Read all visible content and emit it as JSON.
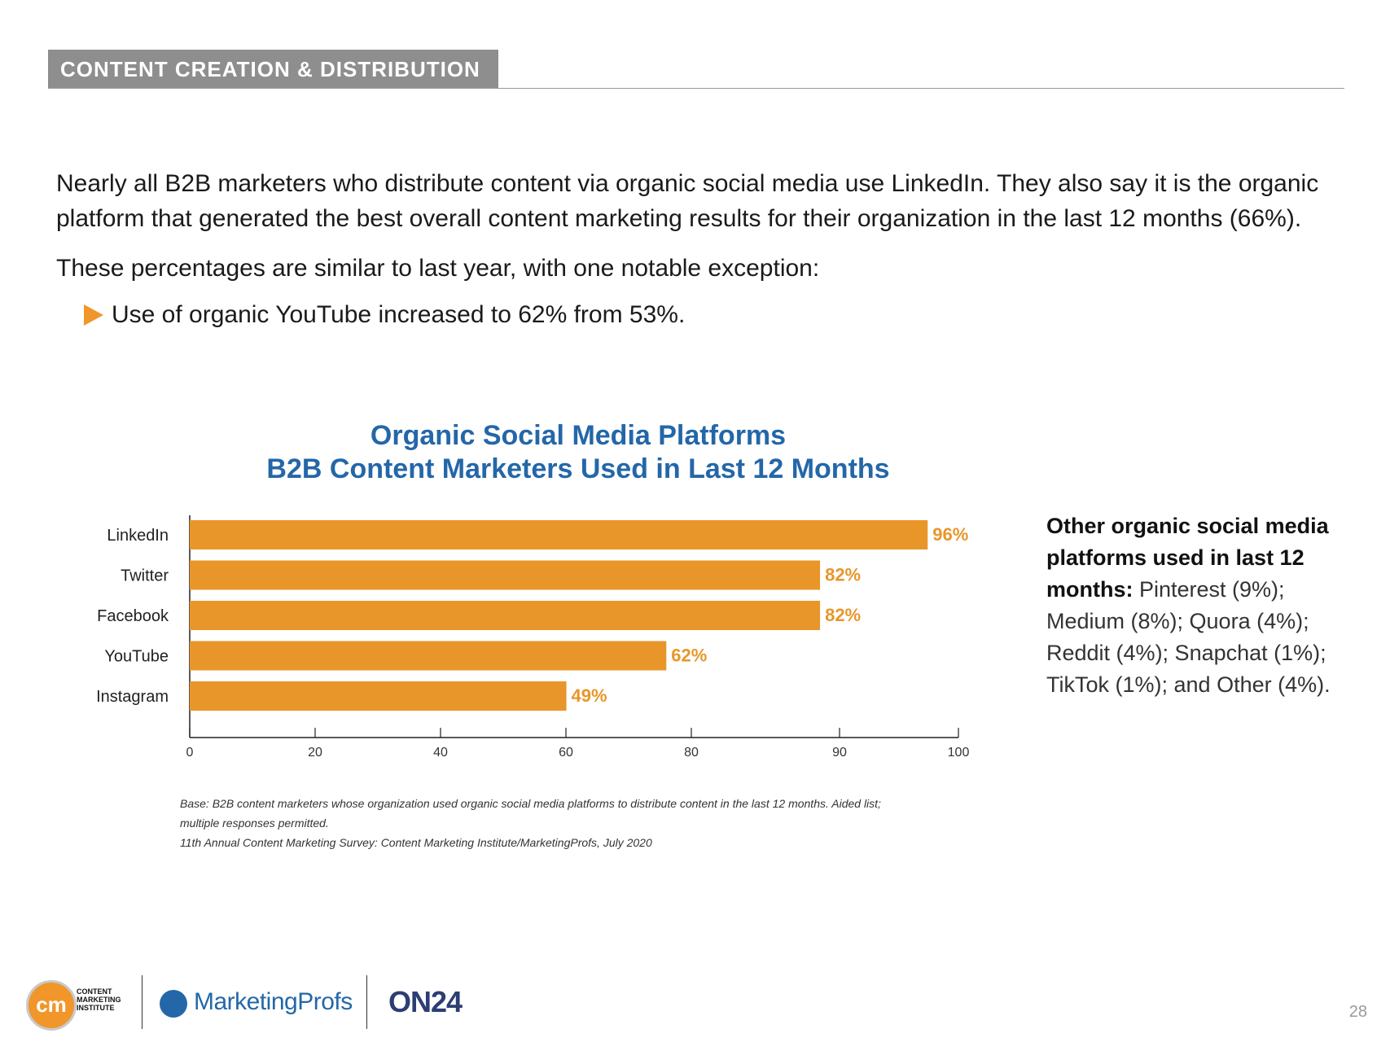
{
  "header": {
    "section_title": "CONTENT CREATION & DISTRIBUTION"
  },
  "intro": {
    "p1": "Nearly all B2B marketers who distribute content via organic social media use LinkedIn. They also say it is the organic platform that generated the best overall content marketing results for their organization in the last 12 months (66%).",
    "p2": "These percentages are similar to last year, with one notable exception:",
    "bullet": "Use of organic YouTube increased to 62% from 53%."
  },
  "chart_data": {
    "type": "bar",
    "orientation": "horizontal",
    "title": "Organic Social Media Platforms",
    "subtitle": "B2B Content Marketers Used in Last 12 Months",
    "categories": [
      "LinkedIn",
      "Twitter",
      "Facebook",
      "YouTube",
      "Instagram"
    ],
    "values": [
      96,
      82,
      82,
      62,
      49
    ],
    "labels": [
      "96%",
      "82%",
      "82%",
      "62%",
      "49%"
    ],
    "x_ticks": [
      "0",
      "20",
      "40",
      "60",
      "80",
      "90",
      "100"
    ],
    "xlim": [
      0,
      100
    ],
    "bar_color": "#E8962A",
    "label_color": "#E8962A",
    "xlabel": "",
    "ylabel": ""
  },
  "notes": {
    "base_line1": "Base: B2B content marketers whose organization used organic social media platforms to distribute content in the last 12 months. Aided list;",
    "base_line2": "multiple responses permitted.",
    "source": "11th Annual Content Marketing Survey: Content Marketing Institute/MarketingProfs, July 2020"
  },
  "side_note": {
    "heading": "Other organic social media platforms used in last 12 months:",
    "body": " Pinterest (9%); Medium (8%); Quora (4%); Reddit (4%); Snapchat (1%); TikTok (1%); and Other (4%)."
  },
  "footer": {
    "cmi_mark": "cm",
    "cmi_line1": "CONTENT",
    "cmi_line2": "MARKETING",
    "cmi_line3": "INSTITUTE",
    "marketingprofs": "MarketingProfs",
    "on24": "ON24",
    "page_number": "28"
  },
  "colors": {
    "accent": "#F0962A",
    "title_blue": "#2467A8",
    "header_gray": "#8E8E8E"
  }
}
